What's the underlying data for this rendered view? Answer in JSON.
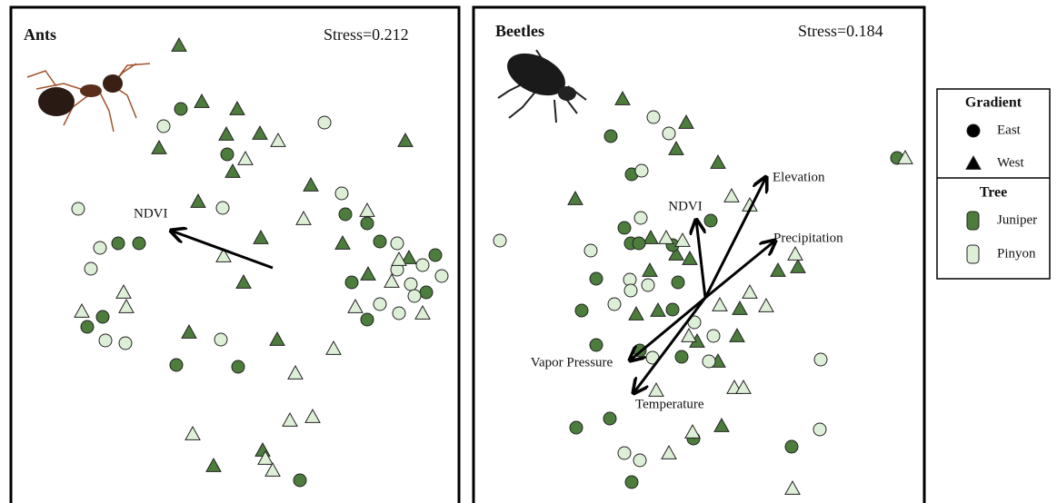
{
  "chart_data": [
    {
      "type": "scatter",
      "title": "Ants",
      "annotation": "Stress=0.212",
      "xlim": [
        0,
        493
      ],
      "ylim": [
        546,
        0
      ],
      "series": [
        {
          "gradient": "West",
          "tree": "Juniper",
          "shape": "triangle",
          "color": "#4c7d3c",
          "x": [
            185,
            210,
            249,
            163,
            237,
            274,
            244,
            434,
            330,
            206,
            275,
            256,
            365,
            393,
            438,
            196,
            293,
            277,
            223
          ],
          "y": [
            42,
            104,
            112,
            155,
            140,
            139,
            181,
            147,
            196,
            214,
            254,
            303,
            260,
            294,
            276,
            358,
            366,
            488,
            505
          ]
        },
        {
          "gradient": "East",
          "tree": "Juniper",
          "shape": "circle",
          "color": "#4c7d3c",
          "x": [
            187,
            238,
            118,
            141,
            368,
            392,
            406,
            467,
            375,
            457,
            101,
            84,
            392,
            182,
            250,
            318
          ],
          "y": [
            112,
            162,
            260,
            260,
            228,
            238,
            258,
            273,
            303,
            314,
            341,
            352,
            344,
            394,
            396,
            521
          ]
        },
        {
          "gradient": "East",
          "tree": "Pinyon",
          "shape": "circle",
          "color": "#ddf0d7",
          "x": [
            168,
            345,
            364,
            74,
            233,
            98,
            88,
            425,
            425,
            453,
            474,
            440,
            444,
            104,
            126,
            231,
            427,
            406
          ],
          "y": [
            131,
            127,
            205,
            222,
            221,
            265,
            288,
            260,
            289,
            284,
            296,
            305,
            318,
            367,
            370,
            366,
            337,
            327
          ]
        },
        {
          "gradient": "West",
          "tree": "Pinyon",
          "shape": "triangle",
          "color": "#ddf0d7",
          "x": [
            294,
            258,
            322,
            392,
            234,
            427,
            419,
            124,
            127,
            78,
            379,
            453,
            355,
            313,
            332,
            307,
            200,
            280,
            288
          ],
          "y": [
            147,
            167,
            233,
            224,
            274,
            278,
            302,
            314,
            330,
            335,
            330,
            337,
            376,
            403,
            451,
            455,
            470,
            497,
            510
          ]
        }
      ],
      "vectors": [
        {
          "label": "NDVI",
          "x": [
            288,
            176
          ],
          "y": [
            287,
            246
          ]
        }
      ]
    },
    {
      "type": "scatter",
      "title": "Beetles",
      "annotation": "Stress=0.184",
      "xlim": [
        0,
        496
      ],
      "ylim": [
        546,
        0
      ],
      "series": [
        {
          "gradient": "West",
          "tree": "Juniper",
          "shape": "triangle",
          "color": "#4c7d3c",
          "x": [
            164,
            234,
            223,
            269,
            112,
            195,
            223,
            238,
            194,
            335,
            357,
            179,
            203,
            293,
            246,
            290,
            269,
            273
          ],
          "y": [
            101,
            127,
            156,
            171,
            211,
            254,
            272,
            277,
            290,
            290,
            286,
            338,
            334,
            332,
            368,
            362,
            390,
            461
          ]
        },
        {
          "gradient": "East",
          "tree": "Juniper",
          "shape": "circle",
          "color": "#4c7d3c",
          "x": [
            151,
            174,
            261,
            166,
            173,
            182,
            219,
            135,
            225,
            119,
            219,
            135,
            183,
            229,
            150,
            113,
            242,
            350,
            174,
            466
          ],
          "y": [
            142,
            184,
            235,
            243,
            260,
            260,
            262,
            299,
            303,
            334,
            333,
            372,
            378,
            385,
            453,
            463,
            475,
            484,
            523,
            166
          ]
        },
        {
          "gradient": "East",
          "tree": "Pinyon",
          "shape": "circle",
          "color": "#ddf0d7",
          "x": [
            198,
            215,
            185,
            184,
            29,
            129,
            172,
            192,
            173,
            155,
            243,
            264,
            197,
            259,
            382,
            381,
            166,
            183
          ],
          "y": [
            121,
            139,
            180,
            232,
            257,
            268,
            300,
            306,
            312,
            327,
            347,
            362,
            386,
            390,
            388,
            465,
            491,
            499
          ]
        },
        {
          "gradient": "West",
          "tree": "Pinyon",
          "shape": "triangle",
          "color": "#ddf0d7",
          "x": [
            475,
            284,
            304,
            230,
            212,
            354,
            271,
            304,
            322,
            237,
            201,
            287,
            297,
            241,
            215,
            351
          ],
          "y": [
            166,
            208,
            218,
            257,
            254,
            272,
            328,
            314,
            329,
            362,
            422,
            419,
            419,
            468,
            491,
            530
          ]
        }
      ],
      "vectors": [
        {
          "label": "Elevation",
          "x": [
            255,
            322
          ],
          "y": [
            320,
            187
          ]
        },
        {
          "label": "Precipitation",
          "x": [
            255,
            332
          ],
          "y": [
            320,
            257
          ]
        },
        {
          "label": "NDVI",
          "x": [
            255,
            245
          ],
          "y": [
            320,
            234
          ]
        },
        {
          "label": "Vapor Pressure",
          "x": [
            255,
            172
          ],
          "y": [
            320,
            389
          ]
        },
        {
          "label": "Temperature",
          "x": [
            255,
            176
          ],
          "y": [
            320,
            425
          ]
        }
      ]
    }
  ],
  "legend": {
    "gradient": {
      "title": "Gradient",
      "items": [
        {
          "name": "East",
          "shape": "circle"
        },
        {
          "name": "West",
          "shape": "triangle"
        }
      ]
    },
    "tree": {
      "title": "Tree",
      "items": [
        {
          "name": "Juniper",
          "color": "#4c7d3c"
        },
        {
          "name": "Pinyon",
          "color": "#ddf0d7"
        }
      ]
    }
  }
}
